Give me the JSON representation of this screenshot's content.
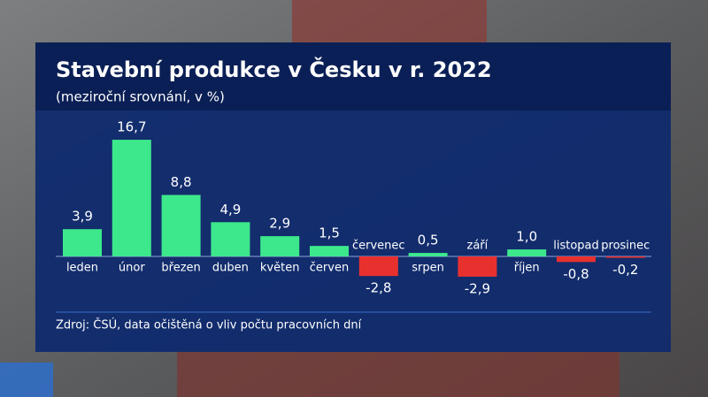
{
  "chart_data": {
    "type": "bar",
    "title": "Stavební produkce v Česku v r. 2022",
    "subtitle": "(meziroční srovnání, v %)",
    "source": "Zdroj: ČSÚ, data očištěná o vliv počtu pracovních dní",
    "categories": [
      "leden",
      "únor",
      "březen",
      "duben",
      "květen",
      "červen",
      "červenec",
      "srpen",
      "září",
      "říjen",
      "listopad",
      "prosinec"
    ],
    "values": [
      3.9,
      16.7,
      8.8,
      4.9,
      2.9,
      1.5,
      -2.8,
      0.5,
      -2.9,
      1.0,
      -0.8,
      -0.2
    ],
    "value_labels": [
      "3,9",
      "16,7",
      "8,8",
      "4,9",
      "2,9",
      "1,5",
      "-2,8",
      "0,5",
      "-2,9",
      "1,0",
      "-0,8",
      "-0,2"
    ],
    "color": "#3de88c",
    "negative_color": "#e8312f"
  }
}
